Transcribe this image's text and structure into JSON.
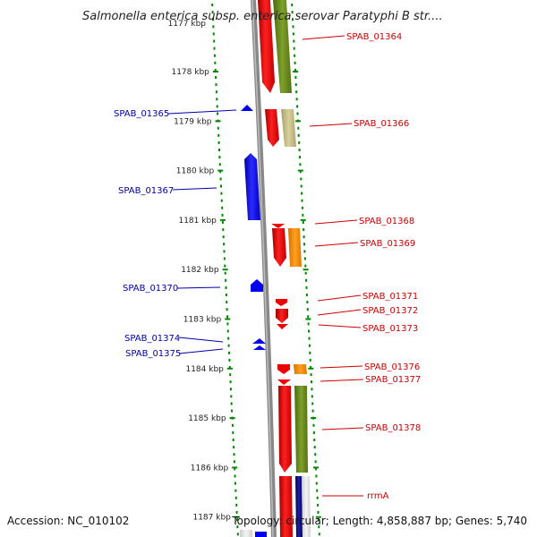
{
  "title": "Salmonella enterica subsp. enterica serovar Paratyphi B str....",
  "footer": {
    "accession": "Accession: NC_010102",
    "summary": "Topology: circular; Length: 4,858,887 bp; Genes: 5,740"
  },
  "scale": {
    "partial_top_label": "1177 kbp",
    "ticks": [
      {
        "kbp": 1178,
        "label": "1178 kbp"
      },
      {
        "kbp": 1179,
        "label": "1179 kbp"
      },
      {
        "kbp": 1180,
        "label": "1180 kbp"
      },
      {
        "kbp": 1181,
        "label": "1181 kbp"
      },
      {
        "kbp": 1182,
        "label": "1182 kbp"
      },
      {
        "kbp": 1183,
        "label": "1183 kbp"
      },
      {
        "kbp": 1184,
        "label": "1184 kbp"
      },
      {
        "kbp": 1185,
        "label": "1185 kbp"
      },
      {
        "kbp": 1186,
        "label": "1186 kbp"
      },
      {
        "kbp": 1187,
        "label": "1187 kbp"
      }
    ]
  },
  "genes": [
    {
      "label": "SPAB_01364",
      "strand": "forward"
    },
    {
      "label": "SPAB_01365",
      "strand": "reverse"
    },
    {
      "label": "SPAB_01366",
      "strand": "forward"
    },
    {
      "label": "SPAB_01367",
      "strand": "reverse"
    },
    {
      "label": "SPAB_01368",
      "strand": "forward"
    },
    {
      "label": "SPAB_01369",
      "strand": "forward"
    },
    {
      "label": "SPAB_01370",
      "strand": "reverse"
    },
    {
      "label": "SPAB_01371",
      "strand": "forward"
    },
    {
      "label": "SPAB_01372",
      "strand": "forward"
    },
    {
      "label": "SPAB_01373",
      "strand": "forward"
    },
    {
      "label": "SPAB_01374",
      "strand": "reverse"
    },
    {
      "label": "SPAB_01375",
      "strand": "reverse"
    },
    {
      "label": "SPAB_01376",
      "strand": "forward"
    },
    {
      "label": "SPAB_01377",
      "strand": "forward"
    },
    {
      "label": "SPAB_01378",
      "strand": "forward"
    },
    {
      "label": "rrmA",
      "strand": "forward"
    }
  ],
  "colors": {
    "forward_cds": "#ee0000",
    "reverse_cds": "#0000ee",
    "tick": "#008800",
    "olive": "#6b8e23",
    "khaki": "#c8c08a",
    "orange": "#ff8c00",
    "navy": "#000080",
    "backbone": "#888888"
  }
}
